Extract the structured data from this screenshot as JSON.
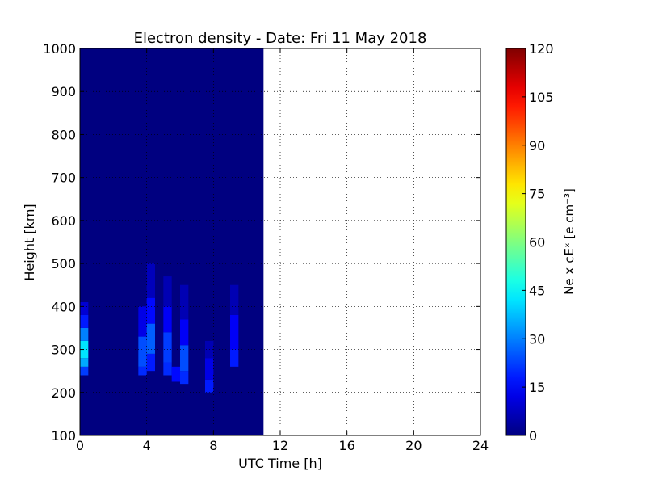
{
  "chart_data": {
    "type": "heatmap",
    "title": "Electron density - Date: Fri 11 May 2018",
    "xlabel": "UTC Time [h]",
    "ylabel": "Height [km]",
    "xlim": [
      0,
      24
    ],
    "ylim": [
      100,
      1000
    ],
    "x_ticks": [
      0,
      4,
      8,
      12,
      16,
      20,
      24
    ],
    "y_ticks": [
      100,
      200,
      300,
      400,
      500,
      600,
      700,
      800,
      900,
      1000
    ],
    "grid": true,
    "data_coverage_hours": [
      0,
      11
    ],
    "background_value": 0,
    "colormap": "jet",
    "colorbar": {
      "label": "Ne x ¢Eˣ  [e cm⁻³]",
      "range": [
        0,
        120
      ],
      "ticks": [
        0,
        15,
        30,
        45,
        60,
        75,
        90,
        105,
        120
      ]
    },
    "features": [
      {
        "t0": 0.0,
        "t1": 0.5,
        "bands": [
          {
            "h0": 240,
            "h1": 260,
            "v": 22
          },
          {
            "h0": 260,
            "h1": 280,
            "v": 35
          },
          {
            "h0": 280,
            "h1": 320,
            "v": 42
          },
          {
            "h0": 320,
            "h1": 350,
            "v": 30
          },
          {
            "h0": 350,
            "h1": 380,
            "v": 18
          },
          {
            "h0": 380,
            "h1": 410,
            "v": 10
          }
        ]
      },
      {
        "t0": 3.5,
        "t1": 4.0,
        "bands": [
          {
            "h0": 240,
            "h1": 260,
            "v": 20
          },
          {
            "h0": 260,
            "h1": 330,
            "v": 24
          },
          {
            "h0": 330,
            "h1": 400,
            "v": 12
          }
        ]
      },
      {
        "t0": 4.0,
        "t1": 4.5,
        "bands": [
          {
            "h0": 250,
            "h1": 290,
            "v": 18
          },
          {
            "h0": 290,
            "h1": 360,
            "v": 26
          },
          {
            "h0": 360,
            "h1": 420,
            "v": 16
          },
          {
            "h0": 420,
            "h1": 500,
            "v": 7
          }
        ]
      },
      {
        "t0": 5.0,
        "t1": 5.5,
        "bands": [
          {
            "h0": 240,
            "h1": 270,
            "v": 20
          },
          {
            "h0": 270,
            "h1": 340,
            "v": 22
          },
          {
            "h0": 340,
            "h1": 400,
            "v": 14
          },
          {
            "h0": 400,
            "h1": 470,
            "v": 6
          }
        ]
      },
      {
        "t0": 5.5,
        "t1": 6.0,
        "bands": [
          {
            "h0": 225,
            "h1": 260,
            "v": 16
          }
        ]
      },
      {
        "t0": 6.0,
        "t1": 6.5,
        "bands": [
          {
            "h0": 220,
            "h1": 250,
            "v": 20
          },
          {
            "h0": 250,
            "h1": 310,
            "v": 24
          },
          {
            "h0": 310,
            "h1": 370,
            "v": 14
          },
          {
            "h0": 370,
            "h1": 450,
            "v": 6
          }
        ]
      },
      {
        "t0": 7.5,
        "t1": 8.0,
        "bands": [
          {
            "h0": 200,
            "h1": 230,
            "v": 18
          },
          {
            "h0": 230,
            "h1": 280,
            "v": 12
          },
          {
            "h0": 280,
            "h1": 320,
            "v": 6
          }
        ]
      },
      {
        "t0": 9.0,
        "t1": 9.5,
        "bands": [
          {
            "h0": 260,
            "h1": 300,
            "v": 18
          },
          {
            "h0": 300,
            "h1": 380,
            "v": 14
          },
          {
            "h0": 380,
            "h1": 450,
            "v": 6
          }
        ]
      }
    ]
  }
}
